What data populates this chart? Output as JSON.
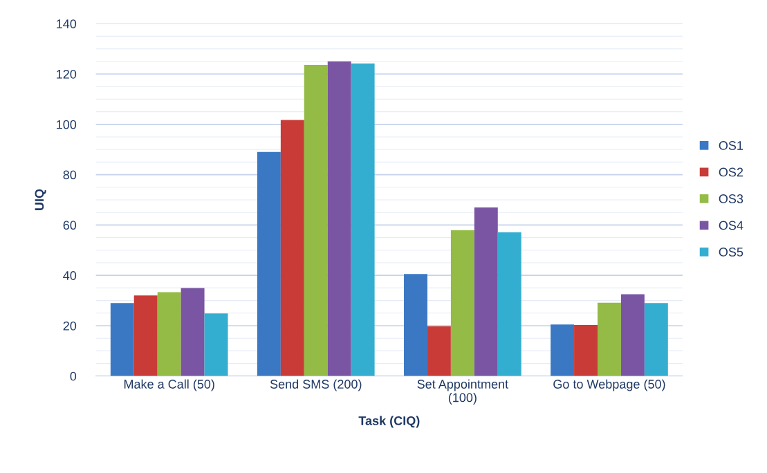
{
  "chart_data": {
    "type": "bar",
    "xlabel": "Task (CIQ)",
    "ylabel": "UIQ",
    "categories": [
      "Make a Call (50)",
      "Send SMS (200)",
      "Set Appointment\n(100)",
      "Go to Webpage (50)"
    ],
    "series": [
      {
        "name": "OS1",
        "color": "#3a78c4",
        "values": [
          29,
          89,
          40.5,
          20.5
        ]
      },
      {
        "name": "OS2",
        "color": "#c93b36",
        "values": [
          32,
          101.7,
          19.8,
          20.3
        ]
      },
      {
        "name": "OS3",
        "color": "#94bb45",
        "values": [
          33.3,
          123.6,
          57.9,
          29.1
        ]
      },
      {
        "name": "OS4",
        "color": "#7a55a3",
        "values": [
          35,
          125,
          67,
          32.5
        ]
      },
      {
        "name": "OS5",
        "color": "#33aed0",
        "values": [
          24.9,
          124.2,
          57.1,
          29
        ]
      }
    ],
    "ylim": [
      0,
      140
    ],
    "yticks": [
      0,
      {
        "value": 5,
        "label": null
      },
      {
        "value": 10,
        "label": null
      },
      {
        "value": 15,
        "label": null
      },
      20,
      {
        "value": 25,
        "label": null
      },
      {
        "value": 30,
        "label": null
      },
      {
        "value": 35,
        "label": null
      },
      40,
      {
        "value": 45,
        "label": null
      },
      {
        "value": 50,
        "label": null
      },
      {
        "value": 55,
        "label": null
      },
      60,
      {
        "value": 65,
        "label": null
      },
      {
        "value": 70,
        "label": null
      },
      {
        "value": 75,
        "label": null
      },
      80,
      {
        "value": 85,
        "label": null
      },
      {
        "value": 90,
        "label": null
      },
      {
        "value": 95,
        "label": null
      },
      100,
      {
        "value": 105,
        "label": null
      },
      {
        "value": 110,
        "label": null
      },
      {
        "value": 115,
        "label": null
      },
      120,
      {
        "value": 125,
        "label": null
      },
      {
        "value": 130,
        "label": null
      },
      {
        "value": 135,
        "label": null
      },
      140
    ],
    "grid": "y",
    "legend": "right"
  }
}
